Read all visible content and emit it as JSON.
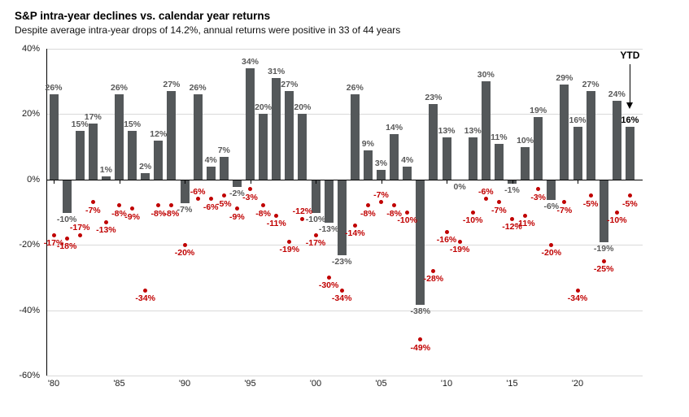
{
  "header": {
    "title": "S&P intra-year declines vs. calendar year returns",
    "subtitle": "Despite average intra-year drops of 14.2%, annual returns were positive in 33 of 44 years"
  },
  "annotations": {
    "ytd_label": "YTD"
  },
  "chart_data": {
    "type": "bar",
    "title": "S&P intra-year declines vs. calendar year returns",
    "subtitle": "Despite average intra-year drops of 14.2%, annual returns were positive in 33 of 44 years",
    "legend": "none",
    "grid": "horizontal",
    "ylim": [
      -60,
      40
    ],
    "colors": {
      "bar": "#54585a",
      "dot": "#c00000",
      "bar_label": "#595959",
      "dot_label": "#c00000",
      "grid": "#d9d9d9",
      "axis": "#000000"
    },
    "series": [
      {
        "name": "Calendar year return",
        "type": "bar",
        "color": "#54585a"
      },
      {
        "name": "Intra-year decline",
        "type": "scatter",
        "color": "#c00000"
      }
    ],
    "y_axis": [
      {
        "v": 40,
        "label": "40%"
      },
      {
        "v": 20,
        "label": "20%"
      },
      {
        "v": 0,
        "label": "0%"
      },
      {
        "v": -20,
        "label": "-20%"
      },
      {
        "v": -40,
        "label": "-40%"
      },
      {
        "v": -60,
        "label": "-60%"
      }
    ],
    "x_axis": [
      {
        "year": 1980,
        "label": "'80"
      },
      {
        "year": 1985,
        "label": "'85"
      },
      {
        "year": 1990,
        "label": "'90"
      },
      {
        "year": 1995,
        "label": "'95"
      },
      {
        "year": 2000,
        "label": "'00"
      },
      {
        "year": 2005,
        "label": "'05"
      },
      {
        "year": 2010,
        "label": "'10"
      },
      {
        "year": 2015,
        "label": "'15"
      },
      {
        "year": 2020,
        "label": "'20"
      }
    ],
    "points": [
      {
        "year": 1980,
        "ret": 26,
        "dec": -17
      },
      {
        "year": 1981,
        "ret": -10,
        "dec": -18
      },
      {
        "year": 1982,
        "ret": 15,
        "dec": -17,
        "decAbove": true
      },
      {
        "year": 1983,
        "ret": 17,
        "dec": -7
      },
      {
        "year": 1984,
        "ret": 1,
        "dec": -13
      },
      {
        "year": 1985,
        "ret": 26,
        "dec": -8
      },
      {
        "year": 1986,
        "ret": 15,
        "dec": -9
      },
      {
        "year": 1987,
        "ret": 2,
        "dec": -34
      },
      {
        "year": 1988,
        "ret": 12,
        "dec": -8
      },
      {
        "year": 1989,
        "ret": 27,
        "dec": -8
      },
      {
        "year": 1990,
        "ret": -7,
        "dec": -20
      },
      {
        "year": 1991,
        "ret": 26,
        "dec": -6,
        "decAbove": true
      },
      {
        "year": 1992,
        "ret": 4,
        "dec": -6
      },
      {
        "year": 1993,
        "ret": 7,
        "dec": -5
      },
      {
        "year": 1994,
        "ret": -2,
        "dec": -9
      },
      {
        "year": 1995,
        "ret": 34,
        "dec": -3
      },
      {
        "year": 1996,
        "ret": 20,
        "dec": -8
      },
      {
        "year": 1997,
        "ret": 31,
        "dec": -11
      },
      {
        "year": 1998,
        "ret": 27,
        "dec": -19
      },
      {
        "year": 1999,
        "ret": 20,
        "dec": -12,
        "decAbove": true
      },
      {
        "year": 2000,
        "ret": -10,
        "dec": -17
      },
      {
        "year": 2001,
        "ret": -13,
        "dec": -30
      },
      {
        "year": 2002,
        "ret": -23,
        "dec": -34
      },
      {
        "year": 2003,
        "ret": 26,
        "dec": -14
      },
      {
        "year": 2004,
        "ret": 9,
        "dec": -8
      },
      {
        "year": 2005,
        "ret": 3,
        "dec": -7,
        "decAbove": true
      },
      {
        "year": 2006,
        "ret": 14,
        "dec": -8
      },
      {
        "year": 2007,
        "ret": 4,
        "dec": -10
      },
      {
        "year": 2008,
        "ret": -38,
        "dec": -49
      },
      {
        "year": 2009,
        "ret": 23,
        "dec": -28
      },
      {
        "year": 2010,
        "ret": 13,
        "dec": -16
      },
      {
        "year": 2011,
        "ret": 0,
        "dec": -19
      },
      {
        "year": 2012,
        "ret": 13,
        "dec": -10
      },
      {
        "year": 2013,
        "ret": 30,
        "dec": -6,
        "decAbove": true
      },
      {
        "year": 2014,
        "ret": 11,
        "dec": -7
      },
      {
        "year": 2015,
        "ret": -1,
        "dec": -12
      },
      {
        "year": 2016,
        "ret": 10,
        "dec": -11
      },
      {
        "year": 2017,
        "ret": 19,
        "dec": -3
      },
      {
        "year": 2018,
        "ret": -6,
        "dec": -20
      },
      {
        "year": 2019,
        "ret": 29,
        "dec": -7
      },
      {
        "year": 2020,
        "ret": 16,
        "dec": -34
      },
      {
        "year": 2021,
        "ret": 27,
        "dec": -5
      },
      {
        "year": 2022,
        "ret": -19,
        "dec": -25
      },
      {
        "year": 2023,
        "ret": 24,
        "dec": -10
      },
      {
        "year": 2024,
        "ret": 16,
        "dec": -5,
        "ytd": true
      }
    ]
  }
}
